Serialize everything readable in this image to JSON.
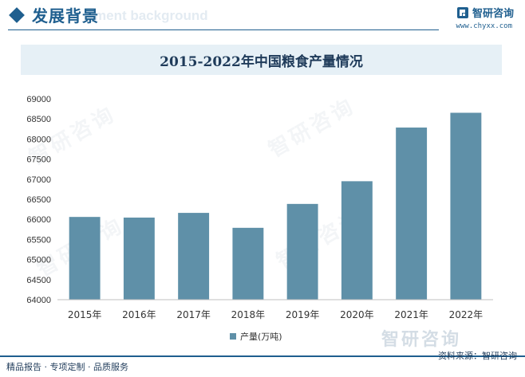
{
  "header": {
    "title": "发展背景",
    "ghost_text": "ment background",
    "brand_name": "智研咨询",
    "brand_url": "www.chyxx.com"
  },
  "chart_data": {
    "type": "bar",
    "title": "2015-2022年中国粮食产量情况",
    "categories": [
      "2015年",
      "2016年",
      "2017年",
      "2018年",
      "2019年",
      "2020年",
      "2021年",
      "2022年"
    ],
    "series": [
      {
        "name": "产量(万吨)",
        "values": [
          66060,
          66044,
          66161,
          65789,
          66384,
          66949,
          68285,
          68653
        ]
      }
    ],
    "ylim": [
      64000,
      69000
    ],
    "yticks": [
      "64000",
      "64500",
      "65000",
      "65500",
      "66000",
      "66500",
      "67000",
      "67500",
      "68000",
      "68500",
      "69000"
    ],
    "grid": false,
    "legend": "bottom-center",
    "bar_color": "#5f90a8"
  },
  "footer": {
    "left": "精品报告 · 专项定制 · 品质服务",
    "right": "资料来源：智研咨询",
    "watermark": "智研咨询"
  },
  "watermark": "智研咨询"
}
